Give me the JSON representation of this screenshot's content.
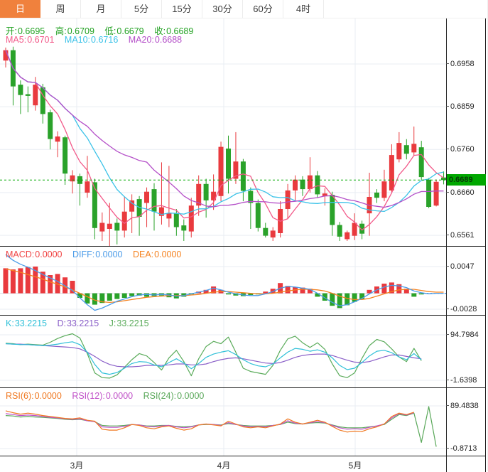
{
  "tabs": {
    "items": [
      {
        "label": "日",
        "active": true
      },
      {
        "label": "周",
        "active": false
      },
      {
        "label": "月",
        "active": false
      },
      {
        "label": "5分",
        "active": false
      },
      {
        "label": "15分",
        "active": false
      },
      {
        "label": "30分",
        "active": false
      },
      {
        "label": "60分",
        "active": false
      },
      {
        "label": "4时",
        "active": false
      }
    ]
  },
  "quote": {
    "o_label": "开:",
    "o": "0.6695",
    "h_label": "高:",
    "h": "0.6709",
    "l_label": "低:",
    "l": "0.6679",
    "c_label": "收:",
    "c": "0.6689"
  },
  "ma": {
    "ma5_label": "MA5:",
    "ma5": "0.6701",
    "ma10_label": "MA10:",
    "ma10": "0.6716",
    "ma20_label": "MA20:",
    "ma20": "0.6688"
  },
  "indicators": {
    "macd": {
      "macd_label": "MACD:",
      "macd": "0.0000",
      "diff_label": "DIFF:",
      "diff": "0.0000",
      "dea_label": "DEA:",
      "dea": "0.0000"
    },
    "kdj": {
      "k_label": "K:",
      "k": "33.2215",
      "d_label": "D:",
      "d": "33.2215",
      "j_label": "J:",
      "j": "33.2215"
    },
    "rsi": {
      "r6_label": "RSI(6):",
      "r6": "0.0000",
      "r12_label": "RSI(12):",
      "r12": "0.0000",
      "r24_label": "RSI(24):",
      "r24": "0.0000"
    }
  },
  "axis": {
    "main_ticks": [
      "0.6958",
      "0.6859",
      "0.6760",
      "0.6660",
      "0.6561"
    ],
    "current_price": "0.6689",
    "macd_ticks": [
      "0.0047",
      "-0.0028"
    ],
    "kdj_ticks": [
      "94.7984",
      "-1.6398"
    ],
    "rsi_ticks": [
      "89.4838",
      "-0.8713"
    ],
    "x_labels": [
      "3月",
      "4月",
      "5月"
    ]
  },
  "colors": {
    "up": "#e93a3e",
    "down": "#2aa22a",
    "ma5": "#f25989",
    "ma10": "#3bc2e8",
    "ma20": "#b44fc8",
    "diff": "#4a9be8",
    "dea": "#f5821f",
    "k": "#2fc0d8",
    "d": "#8a5fc8",
    "j": "#5aab5a",
    "rsi6": "#f07820",
    "rsi12": "#c050c8",
    "rsi24": "#5aa85a",
    "price_line": "#00a800",
    "grid": "#e9eef3",
    "accent": "#f0813d"
  },
  "chart_data": [
    {
      "type": "candlestick",
      "panel": "main",
      "ylabel": "price",
      "y_ticks": [
        0.6958,
        0.6859,
        0.676,
        0.666,
        0.6561
      ],
      "y_range": [
        0.65364,
        0.70634
      ],
      "current_price": 0.6689,
      "ma_periods": [
        5,
        10,
        20
      ],
      "x_month_labels": [
        "3月",
        "4月",
        "5月"
      ],
      "candles": [
        [
          0.6966,
          0.6996,
          0.695,
          0.699
        ],
        [
          0.699,
          0.6998,
          0.6862,
          0.6906
        ],
        [
          0.691,
          0.692,
          0.6842,
          0.6886
        ],
        [
          0.6888,
          0.6906,
          0.6846,
          0.6884
        ],
        [
          0.6862,
          0.6928,
          0.685,
          0.691
        ],
        [
          0.6904,
          0.6912,
          0.682,
          0.6842
        ],
        [
          0.6846,
          0.6852,
          0.676,
          0.6784
        ],
        [
          0.6778,
          0.6802,
          0.6742,
          0.679
        ],
        [
          0.6788,
          0.6792,
          0.6678,
          0.6704
        ],
        [
          0.6686,
          0.6712,
          0.6658,
          0.67
        ],
        [
          0.6698,
          0.6704,
          0.663,
          0.668
        ],
        [
          0.666,
          0.6745,
          0.6648,
          0.6686
        ],
        [
          0.6684,
          0.6692,
          0.6552,
          0.6578
        ],
        [
          0.657,
          0.6614,
          0.6548,
          0.659
        ],
        [
          0.6576,
          0.6636,
          0.6536,
          0.6588
        ],
        [
          0.659,
          0.66,
          0.654,
          0.6572
        ],
        [
          0.6572,
          0.665,
          0.6556,
          0.6616
        ],
        [
          0.6616,
          0.6656,
          0.6566,
          0.6642
        ],
        [
          0.6645,
          0.6652,
          0.656,
          0.6604
        ],
        [
          0.6636,
          0.6672,
          0.658,
          0.6662
        ],
        [
          0.6668,
          0.6682,
          0.6572,
          0.6616
        ],
        [
          0.6606,
          0.673,
          0.6586,
          0.6626
        ],
        [
          0.66,
          0.6722,
          0.658,
          0.6612
        ],
        [
          0.6612,
          0.6622,
          0.656,
          0.658
        ],
        [
          0.6584,
          0.6598,
          0.6548,
          0.6572
        ],
        [
          0.657,
          0.6648,
          0.6556,
          0.663
        ],
        [
          0.663,
          0.67,
          0.6606,
          0.668
        ],
        [
          0.668,
          0.6692,
          0.6602,
          0.6642
        ],
        [
          0.6642,
          0.6702,
          0.662,
          0.6662
        ],
        [
          0.6652,
          0.6778,
          0.664,
          0.6766
        ],
        [
          0.6762,
          0.6792,
          0.6658,
          0.6692
        ],
        [
          0.6692,
          0.68,
          0.668,
          0.6732
        ],
        [
          0.6732,
          0.6738,
          0.664,
          0.6664
        ],
        [
          0.6664,
          0.6672,
          0.6576,
          0.6636
        ],
        [
          0.6636,
          0.6644,
          0.657,
          0.6578
        ],
        [
          0.6578,
          0.659,
          0.6556,
          0.656
        ],
        [
          0.6556,
          0.658,
          0.6548,
          0.6572
        ],
        [
          0.6566,
          0.664,
          0.6556,
          0.6622
        ],
        [
          0.6622,
          0.668,
          0.66,
          0.6665
        ],
        [
          0.6665,
          0.67,
          0.664,
          0.669
        ],
        [
          0.669,
          0.6698,
          0.6652,
          0.6668
        ],
        [
          0.6668,
          0.6742,
          0.666,
          0.67
        ],
        [
          0.67,
          0.671,
          0.6648,
          0.6656
        ],
        [
          0.6652,
          0.667,
          0.663,
          0.6658
        ],
        [
          0.6655,
          0.6662,
          0.656,
          0.6585
        ],
        [
          0.6585,
          0.6592,
          0.6548,
          0.6558
        ],
        [
          0.6552,
          0.6572,
          0.6548,
          0.6568
        ],
        [
          0.656,
          0.6612,
          0.655,
          0.659
        ],
        [
          0.6588,
          0.6595,
          0.6552,
          0.6565
        ],
        [
          0.6612,
          0.6706,
          0.656,
          0.665
        ],
        [
          0.666,
          0.6668,
          0.6636,
          0.6648
        ],
        [
          0.6648,
          0.6713,
          0.664,
          0.6686
        ],
        [
          0.6665,
          0.6772,
          0.666,
          0.6747
        ],
        [
          0.6737,
          0.68,
          0.673,
          0.6775
        ],
        [
          0.677,
          0.6784,
          0.6737,
          0.675
        ],
        [
          0.6753,
          0.6813,
          0.6745,
          0.6773
        ],
        [
          0.6765,
          0.678,
          0.6688,
          0.6696
        ],
        [
          0.669,
          0.6694,
          0.6624,
          0.6627
        ],
        [
          0.663,
          0.669,
          0.6628,
          0.6685
        ],
        [
          0.6695,
          0.6709,
          0.6679,
          0.6689
        ]
      ]
    },
    {
      "type": "bar",
      "panel": "macd",
      "y_ticks": [
        0.0047,
        -0.0028
      ],
      "y_range": [
        -0.0038,
        0.00833
      ],
      "histogram": [
        0.0044,
        0.0042,
        0.0044,
        0.0046,
        0.0047,
        0.0038,
        0.0032,
        0.0034,
        0.0028,
        0.0022,
        -0.0008,
        -0.0018,
        -0.002,
        -0.0017,
        -0.0013,
        -0.001,
        -0.0008,
        -0.0005,
        -0.0004,
        -0.0006,
        -0.0005,
        -0.0004,
        -0.0007,
        -0.0009,
        -0.0006,
        -0.0002,
        0.0003,
        0.0006,
        0.0012,
        0.0006,
        -0.0002,
        -0.0004,
        -0.0005,
        -0.0003,
        -0.0002,
        0.0003,
        0.0008,
        0.0018,
        0.0013,
        0.0011,
        0.001,
        0.0008,
        -0.0006,
        -0.0013,
        -0.0022,
        -0.0026,
        -0.0021,
        -0.0015,
        -0.001,
        0.0006,
        0.0012,
        0.0017,
        0.0019,
        0.0016,
        0.0008,
        -0.0006,
        -0.0002,
        0.0,
        0.0,
        0.0
      ],
      "series": [
        {
          "name": "DIFF",
          "values": [
            0.0068,
            0.0058,
            0.0051,
            0.0046,
            0.004,
            0.0033,
            0.0027,
            0.0021,
            0.0013,
            0.0005,
            -0.0008,
            -0.002,
            -0.003,
            -0.0026,
            -0.002,
            -0.0014,
            -0.001,
            -0.0006,
            -0.0003,
            -0.0002,
            -0.0003,
            -0.0002,
            -0.0003,
            -0.0005,
            -0.0004,
            -0.0001,
            0.0002,
            0.0005,
            0.0009,
            0.0006,
            0.0002,
            -0.0001,
            -0.0003,
            -0.0004,
            -0.0004,
            -0.0001,
            0.0003,
            0.0009,
            0.0012,
            0.0011,
            0.0009,
            0.0007,
            0.0,
            -0.0008,
            -0.0016,
            -0.0022,
            -0.002,
            -0.0015,
            -0.0009,
            -0.0001,
            0.0006,
            0.0011,
            0.0014,
            0.0013,
            0.001,
            0.0004,
            0.0001,
            -0.0001,
            0.0,
            0.0
          ]
        },
        {
          "name": "DEA",
          "values": [
            0.0043,
            0.004,
            0.0037,
            0.0033,
            0.0029,
            0.0025,
            0.002,
            0.0016,
            0.0011,
            0.0006,
            0.0,
            -0.0006,
            -0.0012,
            -0.0015,
            -0.0016,
            -0.0015,
            -0.0013,
            -0.0011,
            -0.0009,
            -0.0007,
            -0.0006,
            -0.0005,
            -0.0004,
            -0.0004,
            -0.0004,
            -0.0003,
            -0.0002,
            0.0,
            0.0002,
            0.0003,
            0.0003,
            0.0002,
            0.0001,
            0.0,
            -0.0001,
            -0.0001,
            0.0,
            0.0002,
            0.0004,
            0.0006,
            0.0007,
            0.0007,
            0.0006,
            0.0004,
            0.0,
            -0.0005,
            -0.0009,
            -0.0011,
            -0.0011,
            -0.0009,
            -0.0005,
            -0.0001,
            0.0003,
            0.0006,
            0.0007,
            0.0007,
            0.0005,
            0.0003,
            0.0002,
            0.0002
          ]
        }
      ]
    },
    {
      "type": "line",
      "panel": "kdj",
      "y_ticks": [
        94.7984,
        -1.6398
      ],
      "y_range": [
        -16.7,
        137.0
      ],
      "series": [
        {
          "name": "K",
          "values": [
            76,
            75,
            74,
            74,
            73,
            72,
            73,
            75,
            78,
            80,
            74,
            58,
            32,
            14,
            11,
            15,
            24,
            34,
            38,
            37,
            31,
            27,
            36,
            44,
            35,
            23,
            34,
            47,
            54,
            58,
            61,
            53,
            42,
            34,
            29,
            27,
            33,
            46,
            58,
            66,
            64,
            60,
            63,
            58,
            46,
            30,
            21,
            24,
            36,
            50,
            60,
            62,
            57,
            48,
            42,
            55,
            42,
            null,
            null,
            null
          ]
        },
        {
          "name": "D",
          "values": [
            76,
            75,
            75,
            74,
            73,
            72,
            71,
            70,
            69,
            68,
            65,
            58,
            49,
            39,
            32,
            28,
            27,
            27,
            28,
            30,
            30,
            30,
            31,
            33,
            33,
            31,
            31,
            33,
            38,
            42,
            45,
            46,
            44,
            41,
            38,
            35,
            34,
            36,
            41,
            47,
            51,
            53,
            54,
            54,
            51,
            46,
            41,
            37,
            36,
            38,
            43,
            48,
            52,
            52,
            49,
            46,
            44,
            null,
            null,
            null
          ]
        },
        {
          "name": "J",
          "values": [
            77,
            76,
            74,
            75,
            74,
            73,
            79,
            87,
            93,
            97,
            88,
            55,
            14,
            4,
            3,
            10,
            26,
            42,
            55,
            50,
            36,
            20,
            46,
            62,
            38,
            8,
            44,
            70,
            81,
            76,
            90,
            58,
            24,
            17,
            14,
            11,
            30,
            62,
            86,
            92,
            78,
            68,
            78,
            64,
            33,
            8,
            4,
            14,
            45,
            72,
            85,
            80,
            65,
            48,
            38,
            66,
            40,
            null,
            null,
            null
          ]
        }
      ]
    },
    {
      "type": "line",
      "panel": "rsi",
      "y_ticks": [
        89.4838,
        -0.8713
      ],
      "y_range": [
        -16.0,
        128.6
      ],
      "series": [
        {
          "name": "RSI(6)",
          "values": [
            79,
            75,
            72,
            74,
            72,
            69,
            67,
            65,
            63,
            62,
            64,
            59,
            57,
            40,
            38,
            38,
            43,
            50,
            48,
            43,
            41,
            45,
            47,
            42,
            38,
            41,
            49,
            51,
            49,
            47,
            57,
            51,
            45,
            43,
            45,
            43,
            47,
            51,
            62,
            55,
            51,
            55,
            59,
            55,
            46,
            38,
            34,
            36,
            35,
            41,
            45,
            51,
            67,
            74,
            71,
            76,
            null,
            null,
            null,
            null
          ]
        },
        {
          "name": "RSI(12)",
          "values": [
            73,
            71,
            69,
            70,
            69,
            67,
            65,
            64,
            62,
            61,
            62,
            58,
            56,
            45,
            44,
            44,
            46,
            50,
            49,
            46,
            45,
            47,
            48,
            45,
            43,
            45,
            49,
            51,
            50,
            48,
            54,
            50,
            47,
            45,
            46,
            45,
            48,
            50,
            58,
            53,
            51,
            54,
            56,
            54,
            48,
            43,
            40,
            41,
            40,
            44,
            47,
            51,
            64,
            73,
            70,
            75,
            null,
            null,
            null,
            null
          ]
        },
        {
          "name": "RSI(24)",
          "values": [
            69,
            68,
            66,
            67,
            66,
            65,
            64,
            63,
            61,
            60,
            61,
            58,
            56,
            48,
            47,
            47,
            48,
            50,
            49,
            47,
            47,
            48,
            48,
            46,
            45,
            46,
            49,
            50,
            50,
            49,
            52,
            50,
            48,
            47,
            47,
            47,
            48,
            50,
            55,
            52,
            51,
            53,
            54,
            53,
            49,
            45,
            43,
            43,
            43,
            45,
            47,
            50,
            61,
            71,
            69,
            74,
            12,
            88,
            3,
            null
          ]
        }
      ]
    }
  ]
}
